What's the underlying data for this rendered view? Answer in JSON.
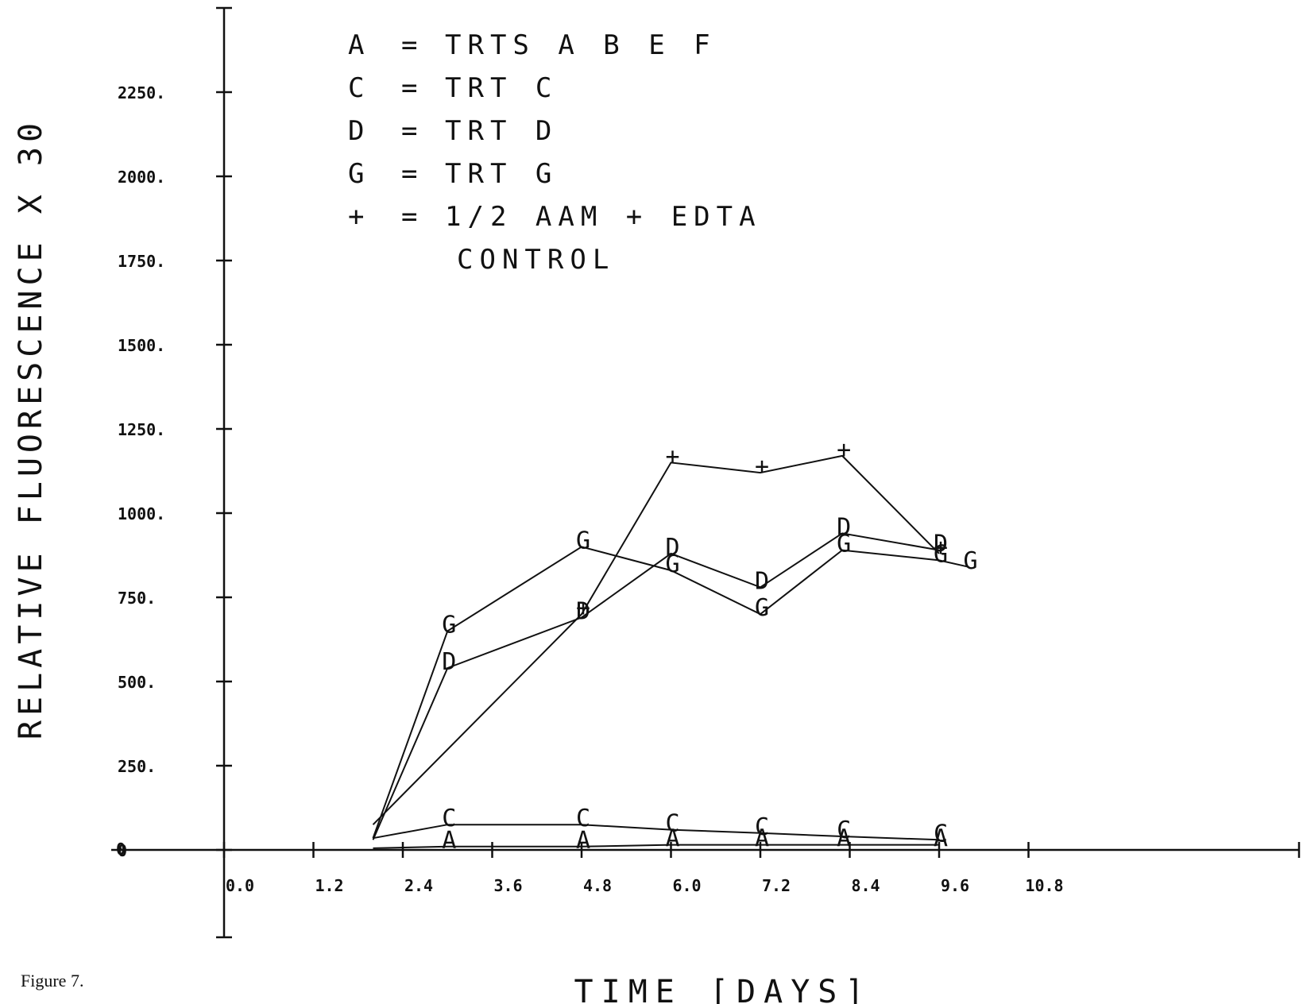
{
  "caption": "Figure 7.",
  "chart_data": {
    "type": "line",
    "xlabel": "TIME [DAYS]",
    "ylabel": "RELATIVE FLUORESCENCE X 30",
    "xlim": [
      -1.2,
      12.0
    ],
    "ylim": [
      0,
      2500
    ],
    "x_ticks": [
      0.0,
      1.2,
      2.4,
      3.6,
      4.8,
      6.0,
      7.2,
      8.4,
      9.6,
      10.8
    ],
    "x_tick_labels": [
      "0.0",
      "1.2",
      "2.4",
      "3.6",
      "4.8",
      "6.0",
      "7.2",
      "8.4",
      "9.6",
      "10.8"
    ],
    "y_ticks": [
      0,
      250,
      500,
      750,
      1000,
      1250,
      1500,
      1750,
      2000,
      2250
    ],
    "y_tick_labels": [
      "0",
      "250.",
      "500.",
      "750.",
      "1000.",
      "1250.",
      "1500.",
      "1750.",
      "2000.",
      "2250."
    ],
    "legend": {
      "position": "top",
      "entries": [
        {
          "symbol": "A",
          "eq": "=",
          "text": "TRTS A B E F"
        },
        {
          "symbol": "C",
          "eq": "=",
          "text": "TRT C"
        },
        {
          "symbol": "D",
          "eq": "=",
          "text": "TRT D"
        },
        {
          "symbol": "G",
          "eq": "=",
          "text": "TRT G"
        },
        {
          "symbol": "+",
          "eq": "=",
          "text": "1/2 AAM + EDTA"
        },
        {
          "symbol": "",
          "eq": "",
          "text": "CONTROL"
        }
      ]
    },
    "series": [
      {
        "marker": "+",
        "x": [
          2.0,
          4.8,
          6.0,
          7.2,
          8.3,
          9.6
        ],
        "y": [
          75,
          700,
          1150,
          1120,
          1170,
          880
        ]
      },
      {
        "marker": "G",
        "x": [
          2.0,
          3.0,
          4.8,
          6.0,
          7.2,
          8.3,
          9.6,
          10.0
        ],
        "y": [
          35,
          650,
          900,
          830,
          700,
          890,
          860,
          840
        ]
      },
      {
        "marker": "D",
        "x": [
          2.0,
          3.0,
          4.8,
          6.0,
          7.2,
          8.3,
          9.6
        ],
        "y": [
          30,
          540,
          690,
          880,
          780,
          940,
          890
        ]
      },
      {
        "marker": "C",
        "x": [
          2.0,
          3.0,
          4.8,
          6.0,
          7.2,
          8.3,
          9.6
        ],
        "y": [
          35,
          75,
          75,
          60,
          50,
          40,
          30
        ]
      },
      {
        "marker": "A",
        "x": [
          2.0,
          3.0,
          4.8,
          6.0,
          7.2,
          8.3,
          9.6
        ],
        "y": [
          5,
          10,
          10,
          15,
          15,
          15,
          15
        ]
      }
    ]
  },
  "ui": {
    "origin_label": "0"
  }
}
